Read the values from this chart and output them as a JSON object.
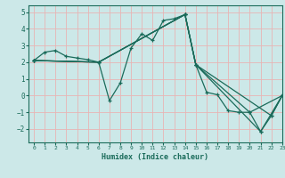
{
  "title": "",
  "xlabel": "Humidex (Indice chaleur)",
  "xlim": [
    -0.5,
    23
  ],
  "ylim": [
    -2.8,
    5.4
  ],
  "xticks": [
    0,
    1,
    2,
    3,
    4,
    5,
    6,
    7,
    8,
    9,
    10,
    11,
    12,
    13,
    14,
    15,
    16,
    17,
    18,
    19,
    20,
    21,
    22,
    23
  ],
  "yticks": [
    -2,
    -1,
    0,
    1,
    2,
    3,
    4,
    5
  ],
  "line_color": "#1a6b5a",
  "bg_color": "#cce8e8",
  "grid_color": "#e8b4b4",
  "lines": [
    {
      "x": [
        0,
        1,
        2,
        3,
        4,
        5,
        6,
        7,
        8,
        9,
        10,
        11,
        12,
        13,
        14,
        15,
        16,
        17,
        18,
        19,
        20,
        21,
        22,
        23
      ],
      "y": [
        2.1,
        2.6,
        2.7,
        2.35,
        2.25,
        2.15,
        2.0,
        -0.3,
        0.75,
        2.85,
        3.7,
        3.3,
        4.5,
        4.6,
        4.85,
        1.85,
        0.2,
        0.05,
        -0.9,
        -1.0,
        -1.0,
        -2.15,
        -1.2,
        0.0
      ]
    },
    {
      "x": [
        0,
        6,
        14,
        15,
        21,
        23
      ],
      "y": [
        2.1,
        2.0,
        4.85,
        1.85,
        -2.15,
        0.0
      ]
    },
    {
      "x": [
        0,
        6,
        14,
        15,
        20,
        23
      ],
      "y": [
        2.1,
        2.0,
        4.85,
        1.85,
        -1.0,
        0.0
      ]
    },
    {
      "x": [
        0,
        6,
        14,
        15,
        22,
        23
      ],
      "y": [
        2.1,
        2.0,
        4.85,
        1.85,
        -1.2,
        0.0
      ]
    }
  ]
}
